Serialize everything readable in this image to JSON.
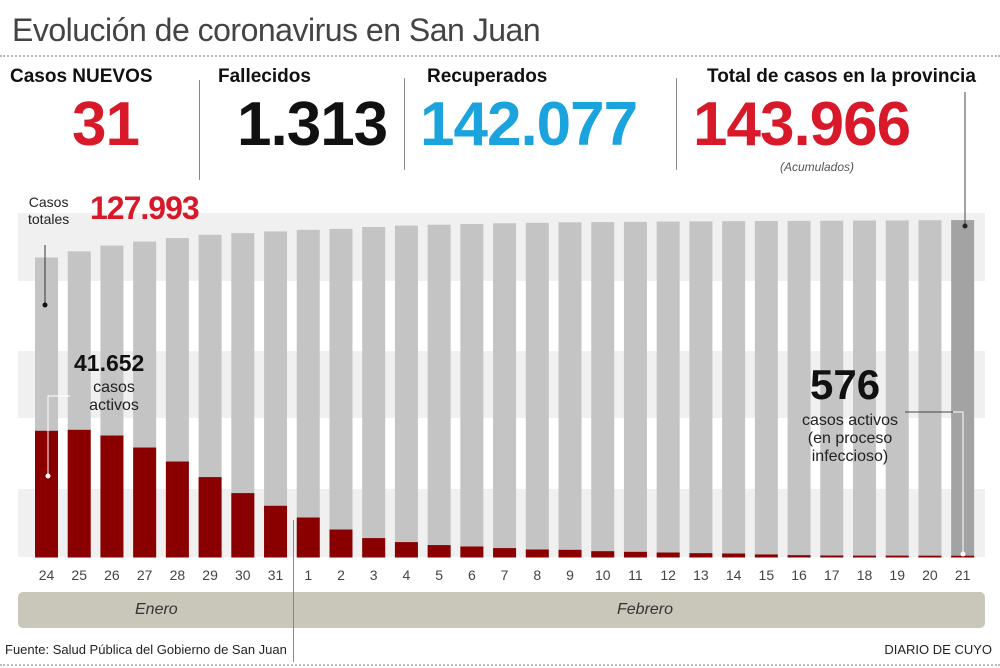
{
  "title": "Evolución de coronavirus en San Juan",
  "stats": {
    "new_cases": {
      "label": "Casos NUEVOS",
      "value": "31"
    },
    "deaths": {
      "label": "Fallecidos",
      "value": "1.313"
    },
    "recovered": {
      "label": "Recuperados",
      "value": "142.077"
    },
    "total": {
      "label": "Total de casos en la provincia",
      "value": "143.966",
      "note": "(Acumulados)"
    }
  },
  "colors": {
    "red": "#d7192a",
    "blue": "#1aa3dc",
    "dark": "#111111",
    "total_bar": "#c4c4c4",
    "total_bar_last": "#a3a3a3",
    "active_bar": "#8a0000"
  },
  "annotations": {
    "start_total_label": [
      "Casos",
      "totales"
    ],
    "start_total_value": "127.993",
    "start_active_value": "41.652",
    "start_active_text": [
      "casos",
      "activos"
    ],
    "end_active_value": "576",
    "end_active_text": [
      "casos activos",
      "(en proceso",
      "infeccioso)"
    ]
  },
  "chart_data": {
    "type": "bar",
    "categories": [
      "24",
      "25",
      "26",
      "27",
      "28",
      "29",
      "30",
      "31",
      "1",
      "2",
      "3",
      "4",
      "5",
      "6",
      "7",
      "8",
      "9",
      "10",
      "11",
      "12",
      "13",
      "14",
      "15",
      "16",
      "17",
      "18",
      "19",
      "20",
      "21"
    ],
    "months": [
      {
        "label": "Enero",
        "days": 8
      },
      {
        "label": "Febrero",
        "days": 21
      }
    ],
    "series": [
      {
        "name": "Casos totales",
        "values": [
          127993,
          130600,
          133100,
          134800,
          136300,
          137700,
          138400,
          139100,
          139800,
          140200,
          141000,
          141600,
          142000,
          142300,
          142600,
          142800,
          143000,
          143100,
          143200,
          143300,
          143400,
          143500,
          143550,
          143600,
          143700,
          143750,
          143800,
          143900,
          143966
        ]
      },
      {
        "name": "casos activos",
        "values": [
          41652,
          41980,
          40100,
          36150,
          31550,
          26430,
          21170,
          17000,
          13150,
          9200,
          6380,
          5060,
          4080,
          3620,
          3090,
          2630,
          2520,
          2080,
          1860,
          1640,
          1420,
          1310,
          1000,
          770,
          660,
          620,
          620,
          600,
          576
        ]
      }
    ],
    "grid": false,
    "xlabel": "",
    "ylabel": ""
  },
  "footer": {
    "source": "Fuente: Salud Pública del Gobierno de San Juan",
    "brand": "DIARIO DE CUYO"
  }
}
